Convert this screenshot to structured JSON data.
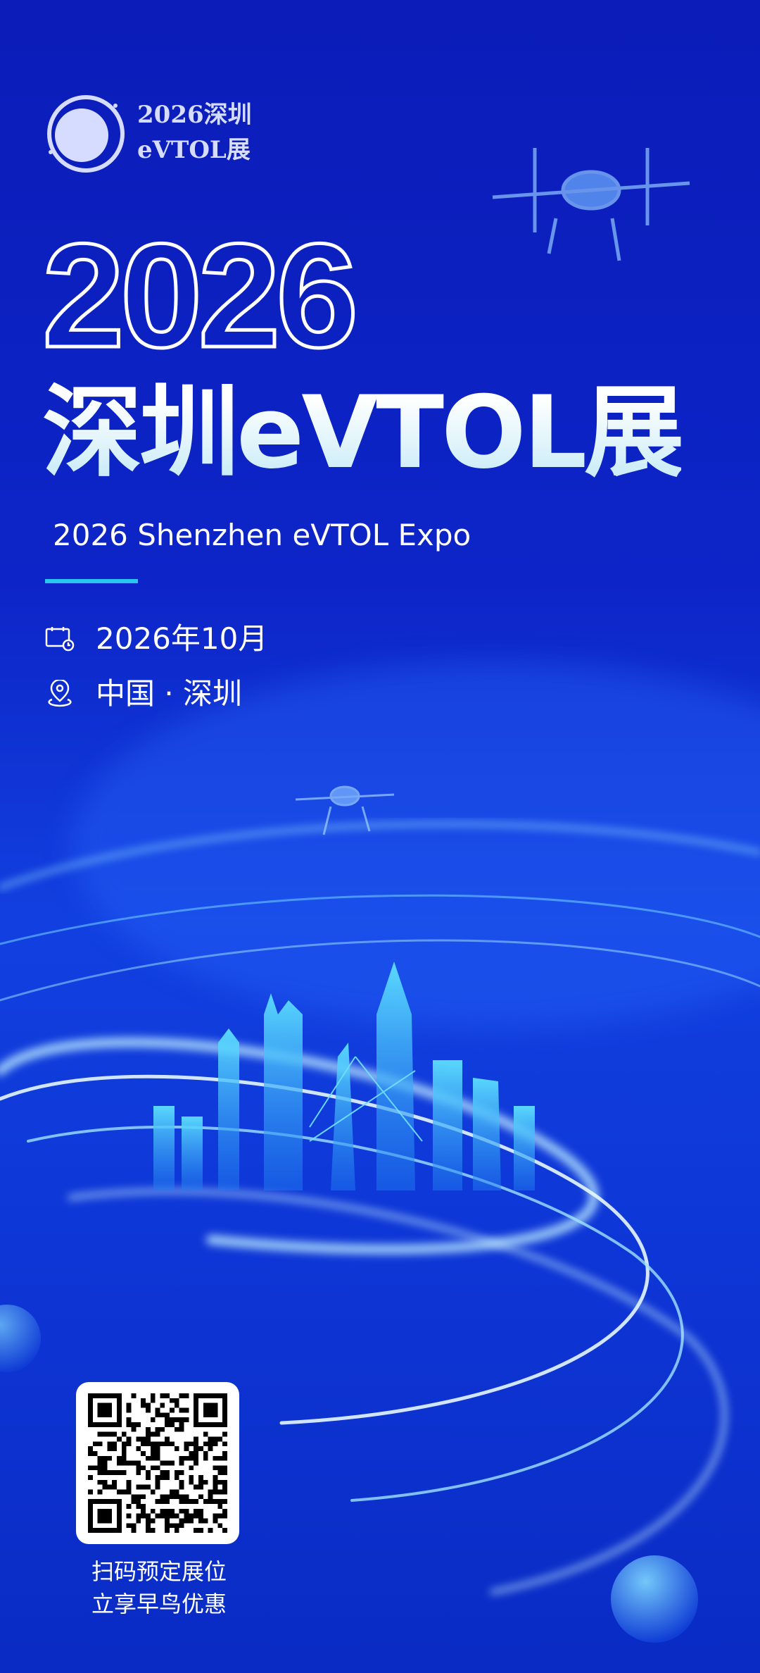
{
  "brand": {
    "line1": "2026深圳",
    "line2": "eVTOL展"
  },
  "hero": {
    "year": "2026",
    "title": "深圳eVTOL展",
    "subtitle": "2026 Shenzhen eVTOL Expo"
  },
  "info": {
    "date": "2026年10月",
    "location": "中国 · 深圳",
    "date_icon": "calendar-clock-icon",
    "location_icon": "location-pin-icon"
  },
  "qr": {
    "caption_line1": "扫码预定展位",
    "caption_line2": "立享早鸟优惠"
  },
  "colors": {
    "background": "#0d25c8",
    "accent": "#29c6f0",
    "skyline": "#3fd0f5"
  }
}
